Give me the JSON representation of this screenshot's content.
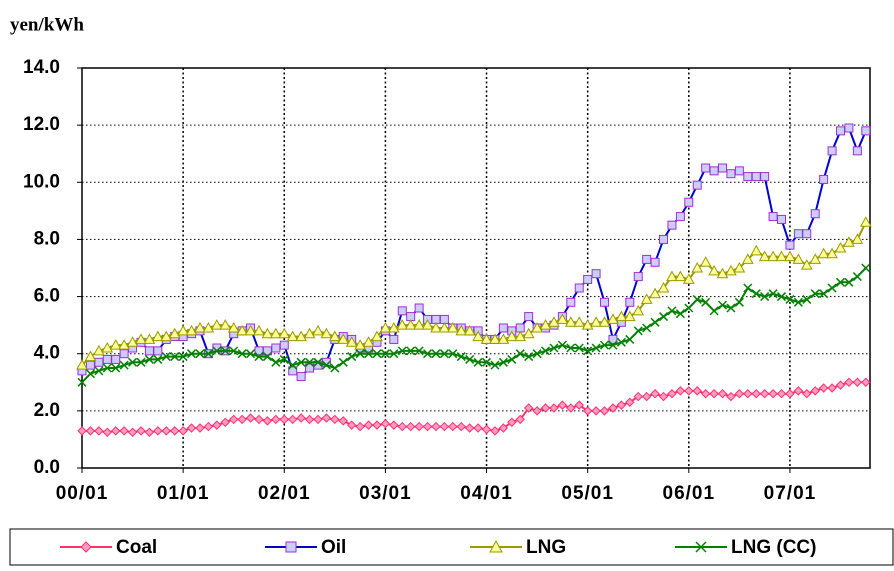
{
  "chart_data": {
    "type": "line",
    "y_label": "yen/kWh",
    "categories": [
      "00/01",
      null,
      null,
      null,
      null,
      null,
      null,
      null,
      null,
      null,
      null,
      null,
      "01/01",
      null,
      null,
      null,
      null,
      null,
      null,
      null,
      null,
      null,
      null,
      null,
      "02/01",
      null,
      null,
      null,
      null,
      null,
      null,
      null,
      null,
      null,
      null,
      null,
      "03/01",
      null,
      null,
      null,
      null,
      null,
      null,
      null,
      null,
      null,
      null,
      null,
      "04/01",
      null,
      null,
      null,
      null,
      null,
      null,
      null,
      null,
      null,
      null,
      null,
      "05/01",
      null,
      null,
      null,
      null,
      null,
      null,
      null,
      null,
      null,
      null,
      null,
      "06/01",
      null,
      null,
      null,
      null,
      null,
      null,
      null,
      null,
      null,
      null,
      null,
      "07/01",
      null,
      null,
      null,
      null,
      null,
      null,
      null,
      null,
      null
    ],
    "ylim": [
      0,
      14
    ],
    "yticks": [
      {
        "value": 0,
        "label": "0.0"
      },
      {
        "value": 2,
        "label": "2.0"
      },
      {
        "value": 4,
        "label": "4.0"
      },
      {
        "value": 6,
        "label": "6.0"
      },
      {
        "value": 8,
        "label": "8.0"
      },
      {
        "value": 10,
        "label": "10.0"
      },
      {
        "value": 12,
        "label": "12.0"
      },
      {
        "value": 14,
        "label": "14.0"
      }
    ],
    "grid": true,
    "legend": "bottom",
    "series": [
      {
        "name": "Coal",
        "color": "#ff3366",
        "marker": "diamond",
        "marker_fill": "#ff99cc",
        "values": [
          1.3,
          1.3,
          1.3,
          1.25,
          1.3,
          1.3,
          1.25,
          1.3,
          1.25,
          1.3,
          1.3,
          1.3,
          1.3,
          1.4,
          1.4,
          1.45,
          1.5,
          1.6,
          1.7,
          1.7,
          1.75,
          1.7,
          1.65,
          1.7,
          1.7,
          1.7,
          1.75,
          1.7,
          1.7,
          1.75,
          1.7,
          1.65,
          1.5,
          1.45,
          1.5,
          1.5,
          1.55,
          1.5,
          1.45,
          1.45,
          1.45,
          1.45,
          1.45,
          1.45,
          1.45,
          1.45,
          1.4,
          1.4,
          1.35,
          1.3,
          1.4,
          1.6,
          1.7,
          2.1,
          2.0,
          2.1,
          2.1,
          2.2,
          2.1,
          2.2,
          2.0,
          2.0,
          2.0,
          2.1,
          2.2,
          2.3,
          2.5,
          2.5,
          2.6,
          2.5,
          2.6,
          2.7,
          2.7,
          2.7,
          2.6,
          2.6,
          2.6,
          2.5,
          2.6,
          2.6,
          2.6,
          2.6,
          2.6,
          2.6,
          2.6,
          2.7,
          2.6,
          2.7,
          2.8,
          2.8,
          2.9,
          3.0,
          3.0,
          3.0
        ]
      },
      {
        "name": "Oil",
        "color": "#0000cc",
        "marker": "square",
        "marker_fill": "#ccccff",
        "values": [
          3.4,
          3.6,
          3.7,
          3.8,
          3.8,
          4.0,
          4.2,
          4.4,
          4.1,
          4.1,
          4.5,
          4.6,
          4.6,
          4.7,
          4.8,
          4.0,
          4.2,
          4.1,
          4.7,
          4.8,
          4.9,
          4.1,
          4.1,
          4.2,
          4.3,
          3.4,
          3.2,
          3.5,
          3.6,
          3.7,
          4.5,
          4.6,
          4.5,
          4.2,
          4.2,
          4.4,
          4.8,
          4.5,
          5.5,
          5.3,
          5.6,
          5.2,
          5.2,
          5.2,
          4.9,
          4.9,
          4.8,
          4.8,
          4.5,
          4.5,
          4.9,
          4.8,
          4.9,
          5.3,
          4.9,
          4.9,
          5.0,
          5.3,
          5.8,
          6.3,
          6.6,
          6.8,
          5.8,
          4.5,
          5.1,
          5.8,
          6.7,
          7.3,
          7.2,
          8.0,
          8.5,
          8.8,
          9.3,
          9.9,
          10.5,
          10.4,
          10.5,
          10.3,
          10.4,
          10.2,
          10.2,
          10.2,
          8.8,
          8.7,
          7.8,
          8.2,
          8.2,
          8.9,
          10.1,
          11.1,
          11.8,
          11.9,
          11.1,
          11.8
        ]
      },
      {
        "name": "LNG",
        "color": "#999900",
        "marker": "triangle",
        "marker_fill": "#ffff99",
        "values": [
          3.6,
          3.9,
          4.1,
          4.2,
          4.3,
          4.3,
          4.4,
          4.5,
          4.5,
          4.6,
          4.6,
          4.7,
          4.8,
          4.8,
          4.9,
          4.9,
          5.0,
          5.0,
          4.9,
          4.8,
          4.8,
          4.8,
          4.7,
          4.7,
          4.7,
          4.6,
          4.6,
          4.7,
          4.8,
          4.7,
          4.6,
          4.5,
          4.4,
          4.3,
          4.4,
          4.6,
          4.9,
          4.9,
          5.0,
          5.0,
          5.0,
          5.0,
          4.9,
          4.9,
          4.9,
          4.8,
          4.8,
          4.6,
          4.5,
          4.5,
          4.5,
          4.6,
          4.6,
          4.7,
          4.9,
          5.0,
          5.1,
          5.2,
          5.1,
          5.1,
          5.0,
          5.1,
          5.1,
          5.2,
          5.3,
          5.3,
          5.5,
          5.9,
          6.1,
          6.3,
          6.7,
          6.7,
          6.6,
          7.0,
          7.2,
          6.9,
          6.8,
          6.9,
          7.0,
          7.3,
          7.6,
          7.4,
          7.4,
          7.4,
          7.4,
          7.3,
          7.1,
          7.3,
          7.5,
          7.5,
          7.7,
          7.9,
          8.0,
          8.6
        ]
      },
      {
        "name": "LNG (CC)",
        "color": "#008000",
        "marker": "x",
        "marker_fill": "#008000",
        "values": [
          3.0,
          3.3,
          3.4,
          3.5,
          3.5,
          3.6,
          3.7,
          3.7,
          3.8,
          3.8,
          3.9,
          3.9,
          3.9,
          4.0,
          4.0,
          4.0,
          4.1,
          4.1,
          4.1,
          4.0,
          4.0,
          3.9,
          3.9,
          3.7,
          3.8,
          3.6,
          3.7,
          3.7,
          3.7,
          3.6,
          3.5,
          3.7,
          3.9,
          4.0,
          4.0,
          4.0,
          4.0,
          4.0,
          4.1,
          4.1,
          4.1,
          4.0,
          4.0,
          4.0,
          4.0,
          3.9,
          3.8,
          3.7,
          3.7,
          3.6,
          3.7,
          3.8,
          4.0,
          3.9,
          4.0,
          4.1,
          4.2,
          4.3,
          4.2,
          4.2,
          4.1,
          4.2,
          4.3,
          4.3,
          4.4,
          4.5,
          4.8,
          4.9,
          5.1,
          5.3,
          5.5,
          5.4,
          5.6,
          5.9,
          5.8,
          5.5,
          5.7,
          5.6,
          5.8,
          6.3,
          6.1,
          6.0,
          6.1,
          6.0,
          5.9,
          5.8,
          5.9,
          6.1,
          6.1,
          6.3,
          6.5,
          6.5,
          6.7,
          7.0
        ]
      }
    ]
  }
}
